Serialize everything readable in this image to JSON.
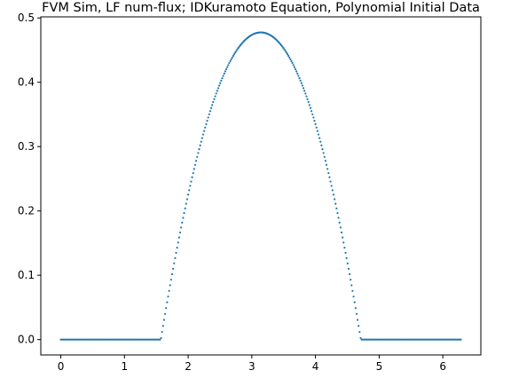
{
  "chart_data": {
    "type": "scatter",
    "title": "FVM Sim, LF num-flux; IDKuramoto Equation, Polynomial Initial Data",
    "xlabel": "",
    "ylabel": "",
    "xlim": [
      -0.314,
      6.597
    ],
    "ylim": [
      -0.0239,
      0.5017
    ],
    "x_ticks": [
      0,
      1,
      2,
      3,
      4,
      5,
      6
    ],
    "y_ticks": [
      0.0,
      0.1,
      0.2,
      0.3,
      0.4,
      0.5
    ],
    "x_tick_labels": [
      "0",
      "1",
      "2",
      "3",
      "4",
      "5",
      "6"
    ],
    "y_tick_labels": [
      "0.0",
      "0.1",
      "0.2",
      "0.3",
      "0.4",
      "0.5"
    ],
    "grid": false,
    "legend": "none",
    "series": [
      {
        "color": "#1f77b4",
        "x_range": [
          0,
          6.2832
        ],
        "num_points": 400,
        "profile": "zero outside [1.5708, 4.7124]; parabolic hump peaking at x = 3.1416 with y = 0.4775",
        "peak": {
          "x": 3.1416,
          "y": 0.4775
        },
        "support": [
          1.5708,
          4.7124
        ]
      }
    ]
  }
}
